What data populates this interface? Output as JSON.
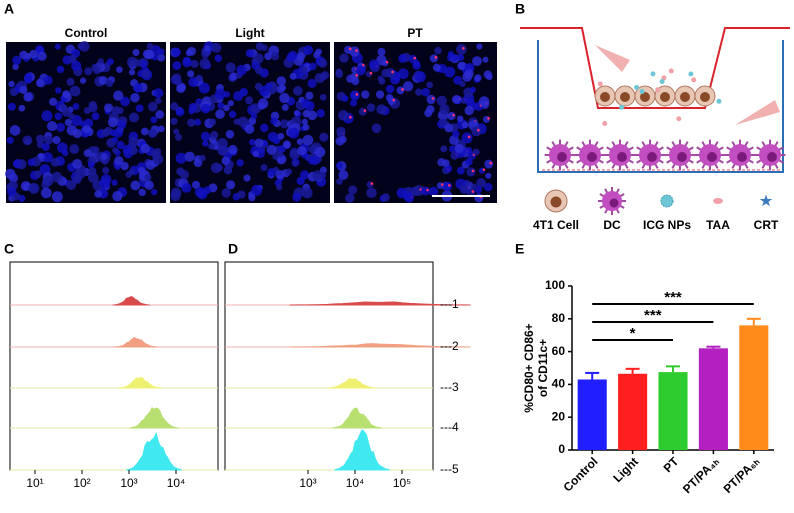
{
  "panels": {
    "A": {
      "letter": "A",
      "titles": [
        "Control",
        "Light",
        "PT"
      ]
    },
    "B": {
      "letter": "B",
      "legend": [
        "4T1 Cell",
        "DC",
        "ICG NPs",
        "TAA",
        "CRT"
      ]
    },
    "C": {
      "letter": "C",
      "xtick_labels": [
        "10¹",
        "10²",
        "10³",
        "10⁴"
      ]
    },
    "D": {
      "letter": "D",
      "xtick_labels": [
        "10³",
        "10⁴",
        "10⁵"
      ]
    },
    "E": {
      "letter": "E"
    },
    "row_labels": [
      "---1",
      "---2",
      "---3",
      "---4",
      "---5"
    ]
  },
  "chart_data": {
    "type": "bar",
    "categories": [
      "Control",
      "Light",
      "PT",
      "PT/PA₄ₕ",
      "PT/PA₆ₕ"
    ],
    "values": [
      43,
      46.5,
      47.5,
      62,
      76
    ],
    "errors": [
      4,
      3,
      3.5,
      1,
      4
    ],
    "colors": [
      "#1f1fff",
      "#ff1f1f",
      "#2ecc2e",
      "#b31fc0",
      "#ff8c1a"
    ],
    "ylabel": [
      "%CD80+ CD86+",
      "of CD11c+"
    ],
    "ylim": [
      0,
      100
    ],
    "yticks": [
      0,
      20,
      40,
      60,
      80,
      100
    ],
    "significance": [
      {
        "from": "Control",
        "to": "PT",
        "label": "*"
      },
      {
        "from": "Control",
        "to": "PT/PA₄ₕ",
        "label": "***"
      },
      {
        "from": "Control",
        "to": "PT/PA₆ₕ",
        "label": "***"
      }
    ]
  }
}
